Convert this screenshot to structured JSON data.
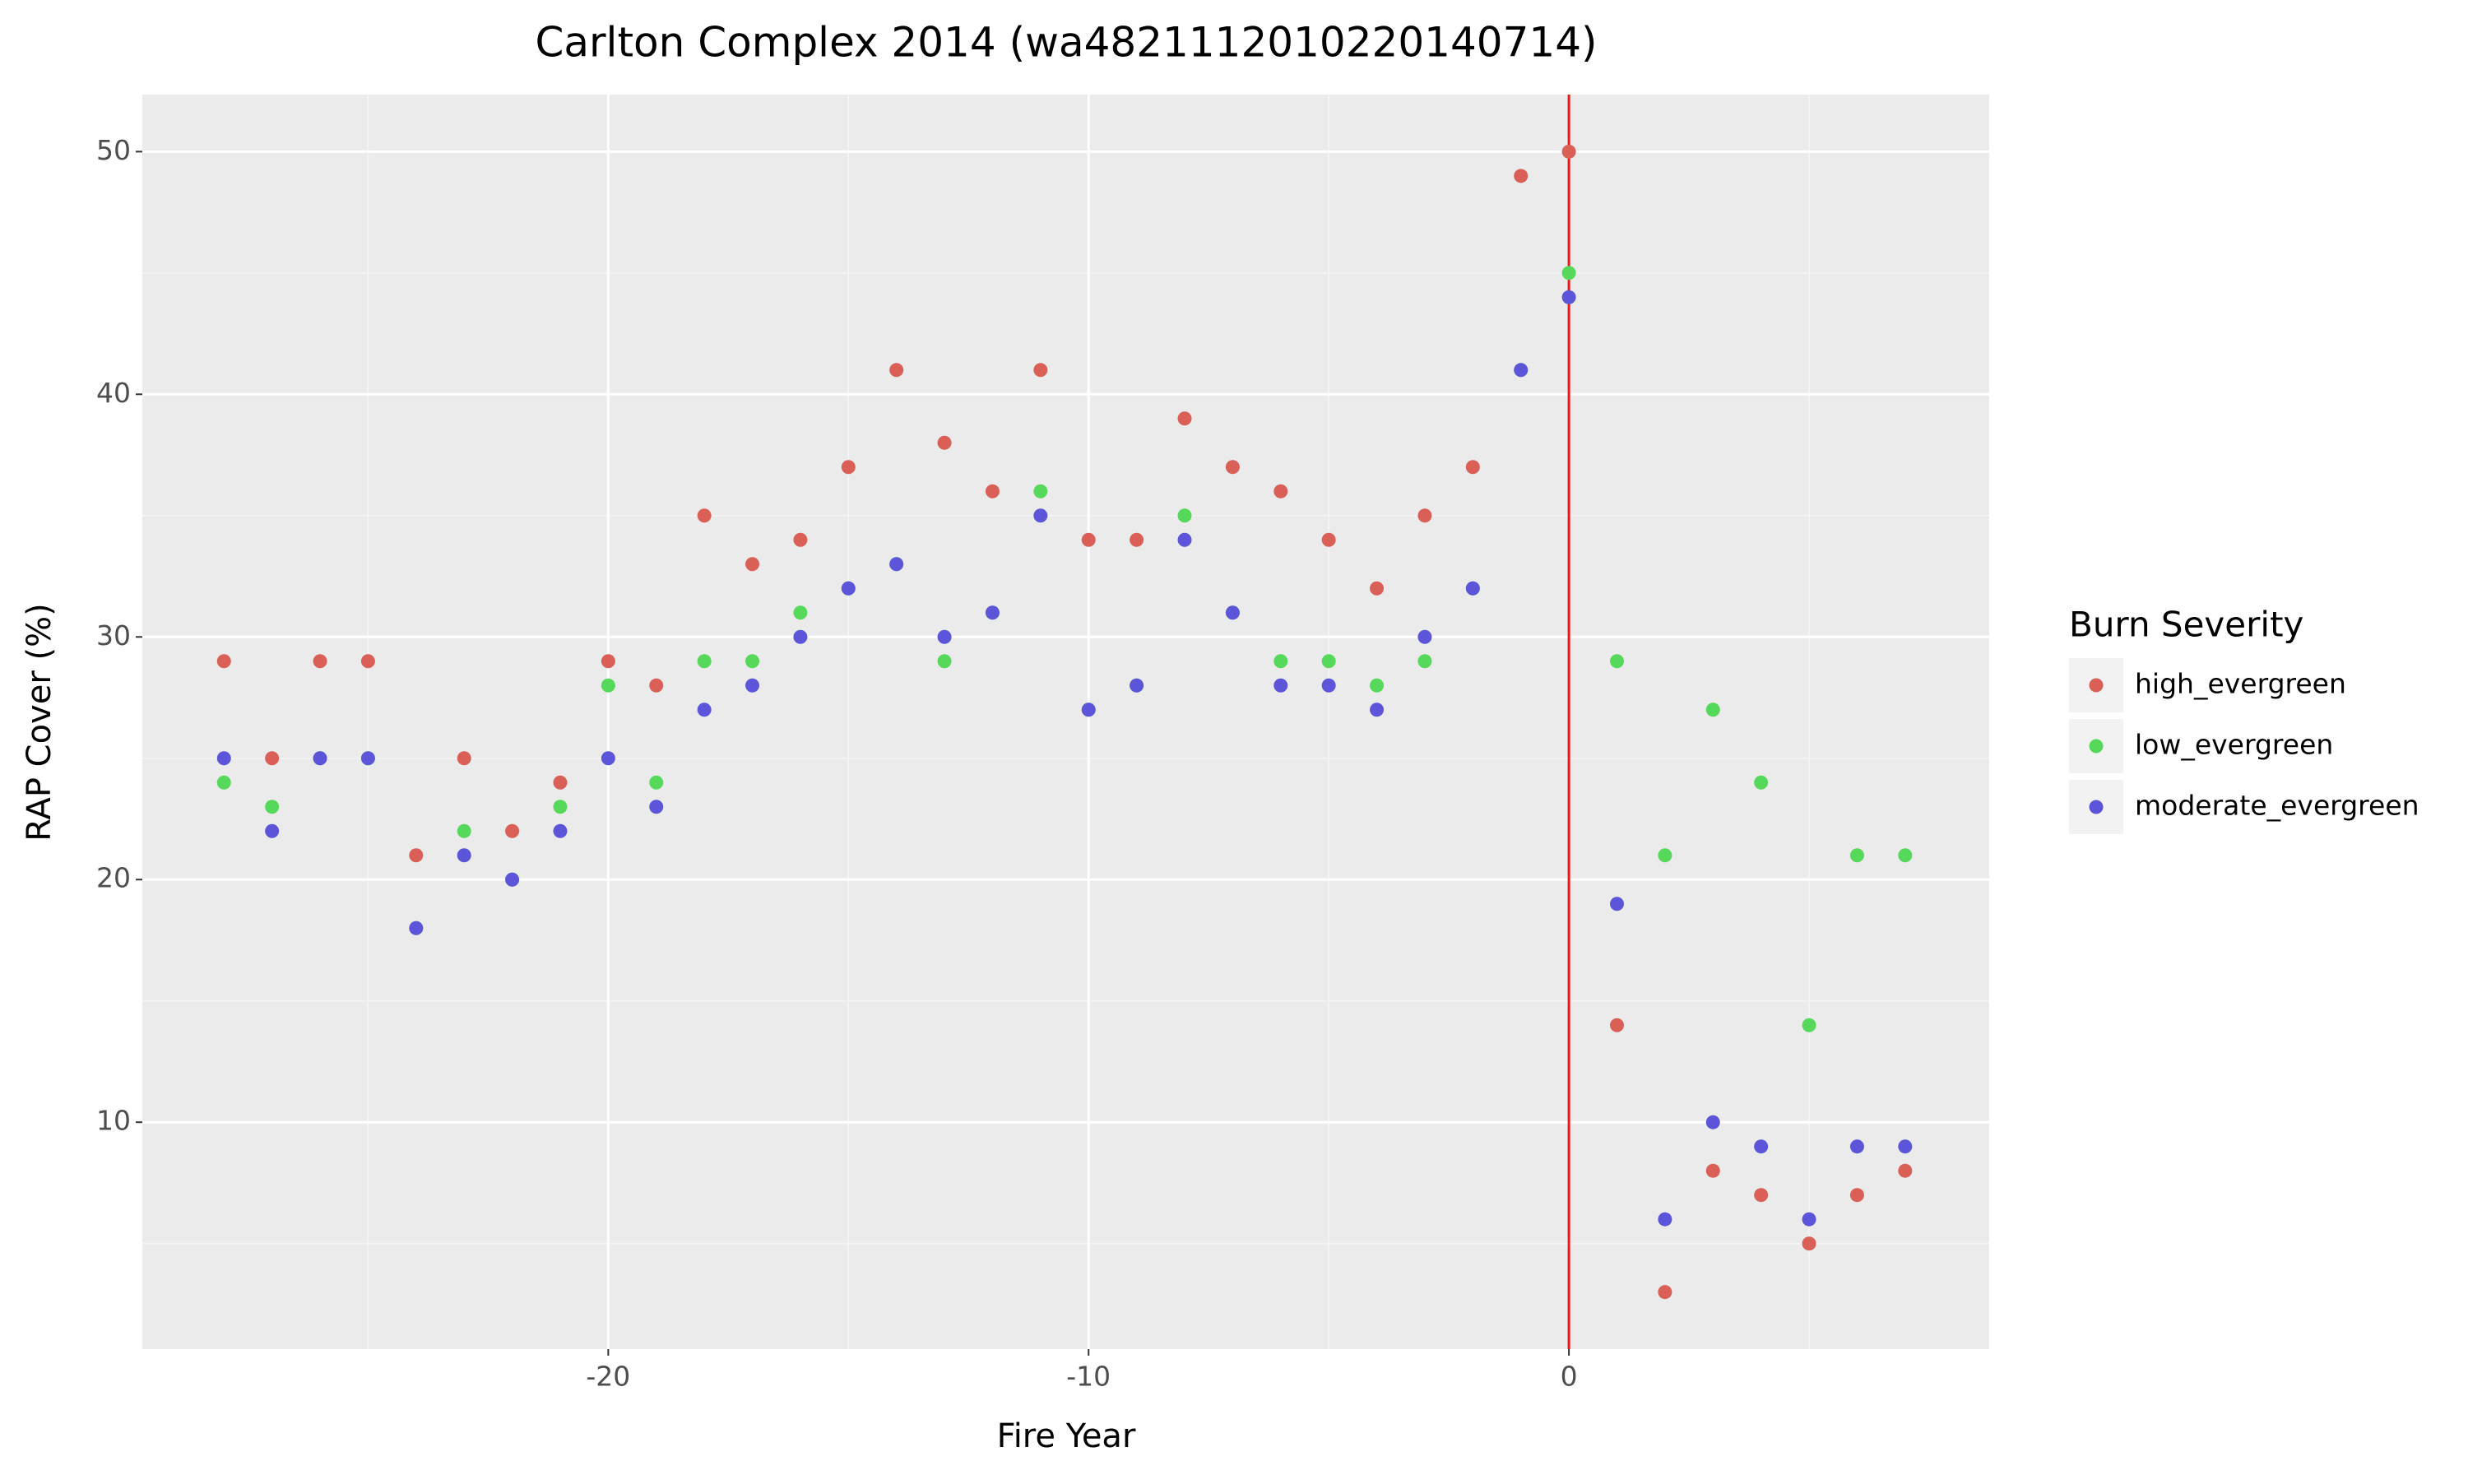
{
  "chart_data": {
    "type": "scatter",
    "title": "Carlton Complex 2014 (wa4821112010220140714)",
    "x_label": "Fire Year",
    "y_label": "RAP Cover (%)",
    "legend_title": "Burn Severity",
    "legend_position": "right",
    "x": [
      -28,
      -27,
      -26,
      -25,
      -24,
      -23,
      -22,
      -21,
      -20,
      -19,
      -18,
      -17,
      -16,
      -15,
      -14,
      -13,
      -12,
      -11,
      -10,
      -9,
      -8,
      -7,
      -6,
      -5,
      -4,
      -3,
      -2,
      -1,
      0,
      1,
      2,
      3,
      4,
      5,
      6,
      7
    ],
    "series": [
      {
        "name": "high_evergreen",
        "color": "#d95f57",
        "values": [
          29,
          25,
          29,
          29,
          21,
          25,
          22,
          24,
          29,
          28,
          35,
          33,
          34,
          37,
          41,
          38,
          36,
          41,
          34,
          34,
          39,
          37,
          36,
          34,
          32,
          35,
          37,
          49,
          50,
          14,
          3,
          8,
          7,
          5,
          7,
          8
        ]
      },
      {
        "name": "low_evergreen",
        "color": "#56d95a",
        "values": [
          24,
          23,
          25,
          25,
          18,
          22,
          20,
          23,
          28,
          24,
          29,
          29,
          31,
          32,
          33,
          29,
          31,
          36,
          27,
          28,
          35,
          31,
          29,
          29,
          28,
          29,
          32,
          41,
          45,
          29,
          21,
          27,
          24,
          14,
          21,
          21
        ]
      },
      {
        "name": "moderate_evergreen",
        "color": "#5c55d9",
        "values": [
          25,
          22,
          25,
          25,
          18,
          21,
          20,
          22,
          25,
          23,
          27,
          28,
          30,
          32,
          33,
          30,
          31,
          35,
          27,
          28,
          34,
          31,
          28,
          28,
          27,
          30,
          32,
          41,
          44,
          19,
          6,
          10,
          9,
          6,
          9,
          9
        ]
      }
    ],
    "xlim": [
      -29.7,
      8.75
    ],
    "ylim": [
      0.65,
      52.35
    ],
    "xticks": [
      -20,
      -10,
      0
    ],
    "yticks": [
      10,
      20,
      30,
      40,
      50
    ],
    "x_minor_ticks": [
      -25,
      -15,
      -5,
      5
    ],
    "y_minor_ticks": [
      5,
      15,
      25,
      35,
      45
    ],
    "grid": true,
    "vline_x": 0,
    "vline_color": "#e41a1c"
  }
}
